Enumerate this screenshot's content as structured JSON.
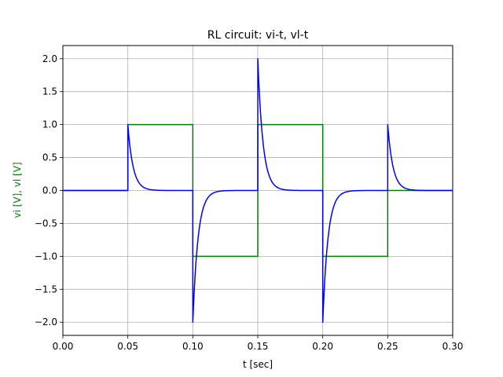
{
  "chart_data": {
    "type": "line",
    "title": "RL circuit: vi-t, vl-t",
    "xlabel": "t [sec]",
    "ylabel": "vi [V], vl [V]",
    "xlim": [
      0.0,
      0.3
    ],
    "ylim": [
      -2.2,
      2.2
    ],
    "grid": true,
    "x_ticks": [
      0.0,
      0.05,
      0.1,
      0.15,
      0.2,
      0.25,
      0.3
    ],
    "x_tick_labels": [
      "0.00",
      "0.05",
      "0.10",
      "0.15",
      "0.20",
      "0.25",
      "0.30"
    ],
    "y_ticks": [
      -2.0,
      -1.5,
      -1.0,
      -0.5,
      0.0,
      0.5,
      1.0,
      1.5,
      2.0
    ],
    "y_tick_labels": [
      "−2.0",
      "−1.5",
      "−1.0",
      "−0.5",
      "0.0",
      "0.5",
      "1.0",
      "1.5",
      "2.0"
    ],
    "series": [
      {
        "color": "#008000",
        "kind": "step",
        "x": [
          0.0,
          0.05,
          0.05,
          0.1,
          0.1,
          0.15,
          0.15,
          0.2,
          0.2,
          0.25,
          0.25,
          0.3
        ],
        "y": [
          0.0,
          0.0,
          1.0,
          1.0,
          -1.0,
          -1.0,
          1.0,
          1.0,
          -1.0,
          -1.0,
          0.0,
          0.0
        ]
      },
      {
        "color": "#0000ff",
        "kind": "exponential-response",
        "time_constant": 0.004,
        "segments": [
          {
            "t_start": 0.0,
            "t_end": 0.05,
            "v0": 0.0
          },
          {
            "t_start": 0.05,
            "t_end": 0.1,
            "v0": 1.0
          },
          {
            "t_start": 0.1,
            "t_end": 0.15,
            "v0": -2.0
          },
          {
            "t_start": 0.15,
            "t_end": 0.2,
            "v0": 2.0
          },
          {
            "t_start": 0.2,
            "t_end": 0.25,
            "v0": -2.0
          },
          {
            "t_start": 0.25,
            "t_end": 0.3,
            "v0": 1.0
          }
        ]
      }
    ],
    "ylabel_color": "#008000",
    "grid_color": "#b0b0b0"
  }
}
